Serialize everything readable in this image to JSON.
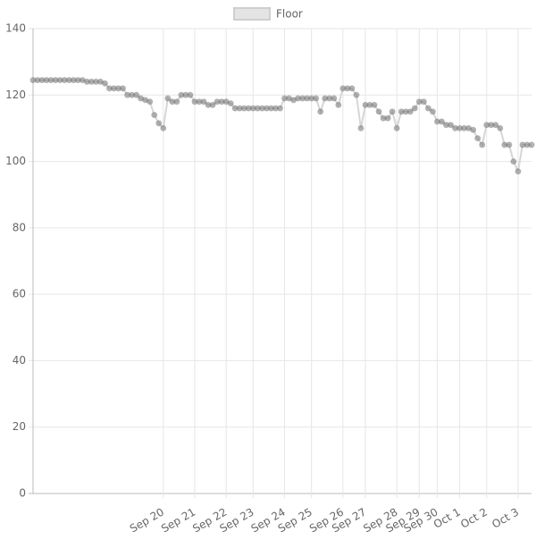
{
  "chart_data": {
    "type": "line",
    "categories": [
      null,
      null,
      null,
      null,
      null,
      null,
      null,
      null,
      null,
      null,
      null,
      null,
      null,
      null,
      null,
      null,
      null,
      null,
      null,
      null,
      null,
      null,
      null,
      null,
      null,
      null,
      null,
      null,
      null,
      "Sep 20",
      null,
      null,
      null,
      null,
      null,
      null,
      "Sep 21",
      null,
      null,
      null,
      null,
      null,
      null,
      "Sep 22",
      null,
      null,
      null,
      null,
      null,
      "Sep 23",
      null,
      null,
      null,
      null,
      null,
      null,
      "Sep 24",
      null,
      null,
      null,
      null,
      null,
      "Sep 25",
      null,
      null,
      null,
      null,
      null,
      null,
      "Sep 26",
      null,
      null,
      null,
      null,
      "Sep 27",
      null,
      null,
      null,
      null,
      null,
      null,
      "Sep 28",
      null,
      null,
      null,
      null,
      "Sep 29",
      null,
      null,
      null,
      "Sep 30",
      null,
      null,
      null,
      null,
      "Oct 1",
      null,
      null,
      null,
      null,
      null,
      "Oct 2",
      null,
      null,
      null,
      null,
      null,
      null,
      "Oct 3",
      null,
      null,
      null
    ],
    "series": [
      {
        "name": "Floor",
        "color": "#7a7a7a",
        "values": [
          124.5,
          124.5,
          124.5,
          124.5,
          124.5,
          124.5,
          124.5,
          124.5,
          124.5,
          124.5,
          124.5,
          124.5,
          124,
          124,
          124,
          124,
          123.5,
          122,
          122,
          122,
          122,
          120,
          120,
          120,
          119,
          118.5,
          118,
          114,
          111.5,
          110,
          119,
          118,
          118,
          120,
          120,
          120,
          118,
          118,
          118,
          117,
          117,
          118,
          118,
          118,
          117.5,
          116,
          116,
          116,
          116,
          116,
          116,
          116,
          116,
          116,
          116,
          116,
          119,
          119,
          118.5,
          119,
          119,
          119,
          119,
          119,
          115,
          119,
          119,
          119,
          117,
          122,
          122,
          122,
          120,
          110,
          117,
          117,
          117,
          115,
          113,
          113,
          115,
          110,
          115,
          115,
          115,
          116,
          118,
          118,
          116,
          115,
          112,
          112,
          111,
          111,
          110,
          110,
          110,
          110,
          109.5,
          107,
          105,
          111,
          111,
          111,
          110,
          105,
          105,
          100,
          97,
          105,
          105,
          105
        ]
      }
    ],
    "ylim": [
      0,
      140
    ],
    "yticks": [
      0,
      20,
      40,
      60,
      80,
      100,
      120,
      140
    ],
    "grid": true,
    "legend": "top"
  }
}
